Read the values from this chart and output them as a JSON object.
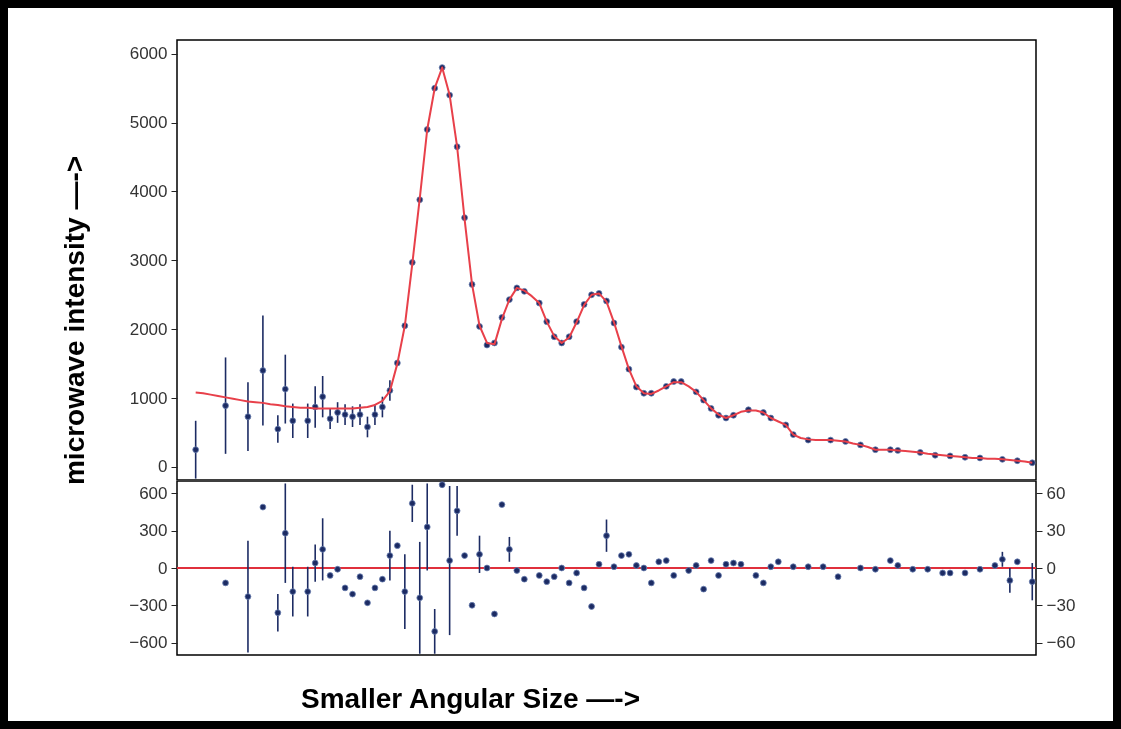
{
  "chart_data": [
    {
      "type": "scatter",
      "ylabel": "microwave intensity —->",
      "categories": [
        null,
        null,
        null,
        null,
        null,
        null,
        null,
        null,
        null,
        null,
        null,
        null,
        null,
        null,
        null,
        null,
        null,
        null,
        null,
        null,
        null,
        null,
        null,
        null,
        null,
        null,
        null,
        null,
        null,
        null,
        null,
        null,
        null,
        null,
        null,
        null,
        null,
        null,
        null,
        null,
        null,
        null,
        null,
        null,
        null,
        null,
        null,
        null,
        null,
        null,
        null,
        null,
        null,
        null,
        null,
        null,
        null,
        null,
        null,
        null,
        null,
        null,
        null,
        null,
        null,
        null,
        null,
        null,
        null,
        null,
        null,
        null,
        null,
        null,
        null,
        null,
        null,
        null,
        null,
        null,
        null,
        null,
        null,
        null,
        null,
        null,
        null,
        null,
        null,
        null,
        null,
        null,
        null,
        null,
        null,
        null,
        null,
        null,
        null,
        null,
        null,
        null,
        null,
        null,
        null,
        null,
        null,
        null,
        null,
        null,
        null,
        null,
        null,
        null,
        null
      ],
      "ylim": [
        -190,
        6200
      ],
      "yticks": [
        0,
        1000,
        2000,
        3000,
        4000,
        5000,
        6000
      ],
      "tick_labels": "y",
      "series": [
        {
          "type": "scatter",
          "marker": "circle",
          "color": "#1c2b63",
          "values": [
            null,
            null,
            250,
            null,
            null,
            null,
            890,
            null,
            null,
            730,
            null,
            1400,
            null,
            550,
            1130,
            670,
            null,
            670,
            870,
            1020,
            700,
            790,
            760,
            730,
            760,
            580,
            760,
            870,
            1110,
            1510,
            2050,
            2970,
            3880,
            4900,
            5500,
            5800,
            5400,
            4650,
            3620,
            2650,
            2040,
            1770,
            1800,
            2170,
            2430,
            2600,
            2550,
            null,
            2380,
            2110,
            1890,
            1800,
            1890,
            2110,
            2360,
            2500,
            2520,
            2410,
            2090,
            1740,
            1420,
            1160,
            1070,
            1070,
            null,
            1170,
            1240,
            1240,
            null,
            1090,
            970,
            850,
            750,
            710,
            750,
            null,
            830,
            null,
            790,
            710,
            null,
            610,
            470,
            null,
            390,
            null,
            null,
            390,
            null,
            370,
            null,
            320,
            null,
            250,
            null,
            250,
            240,
            null,
            null,
            210,
            null,
            170,
            null,
            160,
            null,
            140,
            null,
            130,
            null,
            null,
            110,
            null,
            90,
            null,
            60
          ],
          "errors": [
            null,
            null,
            420,
            null,
            null,
            null,
            700,
            null,
            null,
            500,
            null,
            800,
            null,
            200,
            500,
            250,
            null,
            250,
            300,
            300,
            150,
            150,
            150,
            150,
            150,
            150,
            150,
            150,
            150,
            null,
            null,
            null,
            null,
            null,
            null,
            null,
            null,
            null,
            null,
            null,
            null,
            null,
            null,
            null,
            null,
            null,
            null,
            null,
            null,
            null,
            null,
            null,
            null,
            null,
            null,
            null,
            null,
            null,
            null,
            null,
            null,
            null,
            null,
            null,
            null,
            null,
            null,
            null,
            null,
            null,
            null,
            null,
            null,
            null,
            null,
            null,
            null,
            null,
            null,
            null,
            null,
            null,
            null,
            null,
            null,
            null,
            null,
            null,
            null,
            null,
            null,
            null,
            null,
            null,
            null,
            null,
            null,
            null,
            null,
            null,
            null,
            null,
            null,
            null,
            null,
            null,
            null,
            null,
            null,
            null,
            null,
            null,
            null,
            null,
            null
          ]
        },
        {
          "type": "line",
          "color": "#e8404a",
          "values": [
            null,
            null,
            1080,
            1070,
            1050,
            1030,
            1010,
            990,
            970,
            950,
            940,
            930,
            910,
            900,
            880,
            870,
            860,
            860,
            850,
            850,
            850,
            850,
            850,
            850,
            860,
            870,
            900,
            960,
            1100,
            1500,
            2050,
            2950,
            3900,
            4900,
            5500,
            5800,
            5400,
            4650,
            3600,
            2650,
            2050,
            1800,
            1780,
            2150,
            2430,
            2600,
            2560,
            2480,
            2380,
            2110,
            1900,
            1800,
            1880,
            2100,
            2350,
            2500,
            2520,
            2400,
            2100,
            1750,
            1420,
            1170,
            1070,
            1060,
            1110,
            1170,
            1230,
            1230,
            1170,
            1090,
            970,
            850,
            760,
            710,
            750,
            800,
            820,
            820,
            790,
            710,
            660,
            610,
            470,
            420,
            400,
            390,
            390,
            390,
            380,
            370,
            340,
            320,
            290,
            250,
            250,
            250,
            240,
            230,
            220,
            210,
            190,
            180,
            170,
            160,
            150,
            140,
            130,
            130,
            120,
            120,
            110,
            100,
            90,
            80,
            60
          ]
        }
      ]
    },
    {
      "type": "scatter",
      "xlabel": "Smaller Angular Size —->",
      "categories": [
        null,
        null,
        null,
        null,
        null,
        null,
        null,
        null,
        null,
        null,
        null,
        null,
        null,
        null,
        null,
        null,
        null,
        null,
        null,
        null,
        null,
        null,
        null,
        null,
        null,
        null,
        null,
        null,
        null,
        null,
        null,
        null,
        null,
        null,
        null,
        null,
        null,
        null,
        null,
        null,
        null,
        null,
        null,
        null,
        null,
        null,
        null,
        null,
        null,
        null,
        null,
        null,
        null,
        null,
        null,
        null,
        null,
        null,
        null,
        null,
        null,
        null,
        null,
        null,
        null,
        null,
        null,
        null,
        null,
        null,
        null,
        null,
        null,
        null,
        null,
        null,
        null,
        null,
        null,
        null,
        null,
        null,
        null,
        null,
        null,
        null,
        null,
        null,
        null,
        null,
        null,
        null,
        null,
        null,
        null,
        null,
        null,
        null,
        null,
        null,
        null,
        null,
        null,
        null,
        null,
        null,
        null,
        null,
        null,
        null,
        null,
        null,
        null,
        null,
        null
      ],
      "ylim": [
        -700,
        700
      ],
      "yticks": [
        -600,
        -300,
        0,
        300,
        600
      ],
      "y2lim": [
        -70,
        70
      ],
      "y2ticks": [
        -60,
        -30,
        0,
        30,
        60
      ],
      "tick_labels": "y",
      "marker": "circle",
      "ref_lines": [
        {
          "axis": "y",
          "value": 0,
          "color": "#e0303c"
        }
      ],
      "series": [
        {
          "type": "scatter",
          "color": "#1c2b63",
          "values": [
            null,
            null,
            null,
            null,
            null,
            null,
            -120,
            null,
            null,
            -230,
            null,
            490,
            null,
            -360,
            280,
            -190,
            null,
            -190,
            40,
            150,
            -60,
            -10,
            -160,
            -210,
            -70,
            -280,
            -160,
            -90,
            100,
            180,
            -190,
            520,
            -240,
            330,
            -510,
            670,
            60,
            460,
            100,
            -300,
            110,
            0,
            -370,
            510,
            150,
            -20,
            -90,
            null,
            -60,
            -110,
            -70,
            0,
            -120,
            -40,
            -160,
            -310,
            30,
            260,
            10,
            100,
            110,
            20,
            0,
            -120,
            50,
            60,
            -60,
            null,
            -20,
            20,
            -170,
            60,
            -60,
            30,
            40,
            30,
            null,
            -60,
            -120,
            10,
            50,
            null,
            10,
            null,
            10,
            null,
            10,
            null,
            -70,
            null,
            null,
            0,
            null,
            -10,
            null,
            60,
            20,
            null,
            -10,
            null,
            -10,
            null,
            -40,
            -40,
            null,
            -40,
            null,
            -10,
            null,
            20,
            70,
            -100,
            50,
            null,
            -110
          ],
          "errors": [
            null,
            null,
            null,
            null,
            null,
            null,
            null,
            null,
            null,
            450,
            null,
            null,
            null,
            150,
            400,
            200,
            null,
            200,
            150,
            250,
            null,
            null,
            null,
            null,
            null,
            null,
            null,
            null,
            200,
            null,
            300,
            150,
            450,
            350,
            180,
            25,
            600,
            200,
            null,
            null,
            150,
            null,
            null,
            null,
            100,
            null,
            null,
            null,
            null,
            null,
            null,
            null,
            null,
            null,
            null,
            null,
            null,
            130,
            null,
            null,
            null,
            null,
            null,
            null,
            null,
            null,
            null,
            null,
            null,
            null,
            null,
            null,
            null,
            null,
            null,
            null,
            null,
            null,
            null,
            null,
            null,
            null,
            null,
            null,
            null,
            null,
            null,
            null,
            null,
            null,
            null,
            null,
            null,
            null,
            null,
            null,
            null,
            null,
            null,
            null,
            null,
            null,
            null,
            null,
            null,
            null,
            null,
            null,
            null,
            null,
            60,
            100,
            null,
            null,
            150
          ]
        }
      ]
    }
  ]
}
